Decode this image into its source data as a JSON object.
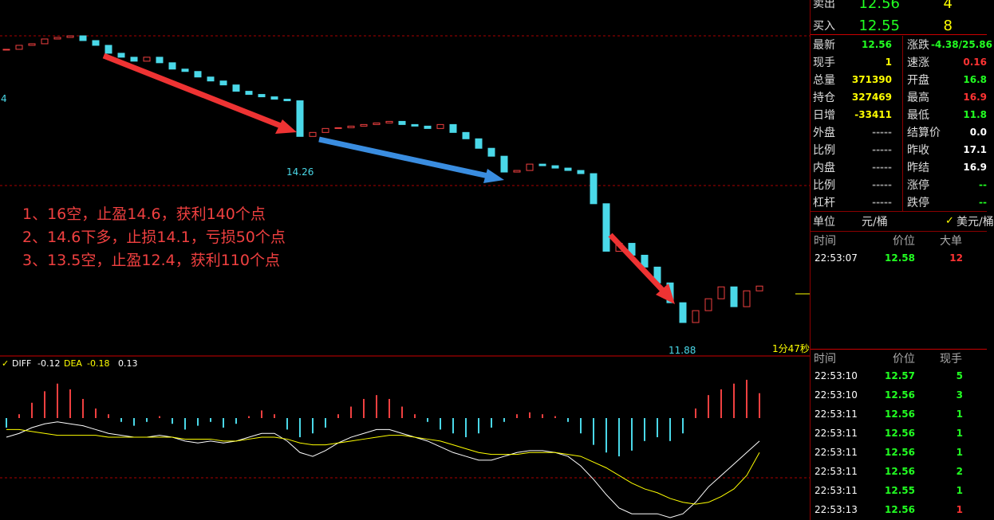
{
  "chart": {
    "type": "candlestick",
    "closes": [
      15.55,
      15.6,
      15.62,
      15.68,
      15.7,
      15.72,
      15.66,
      15.6,
      15.5,
      15.45,
      15.4,
      15.45,
      15.38,
      15.3,
      15.27,
      15.2,
      15.15,
      15.1,
      15.02,
      14.98,
      14.95,
      14.92,
      14.9,
      14.45,
      14.5,
      14.55,
      14.56,
      14.58,
      14.6,
      14.62,
      14.64,
      14.6,
      14.58,
      14.55,
      14.6,
      14.5,
      14.42,
      14.3,
      14.2,
      14.0,
      14.02,
      14.1,
      14.08,
      14.05,
      14.02,
      13.98,
      13.6,
      13.0,
      13.1,
      12.95,
      12.8,
      12.6,
      12.35,
      12.1,
      12.25,
      12.4,
      12.55,
      12.3,
      12.5,
      12.56
    ],
    "left_label": "4",
    "mid_low_label": "14.26",
    "low_label": "11.88",
    "timer": "1分47秒",
    "annotations": [
      "1、16空，止盈14.6，获利140个点",
      "2、14.6下多，止损14.1，亏损50个点",
      "3、13.5空，止盈12.4，获利110个点"
    ],
    "macd": {
      "diff_label": "DIFF",
      "diff": "-0.12",
      "dea_label": "DEA",
      "dea": "-0.18",
      "macd": "0.13",
      "histogram": [
        -0.05,
        0.02,
        0.08,
        0.14,
        0.18,
        0.15,
        0.1,
        0.05,
        0.02,
        -0.02,
        -0.04,
        -0.02,
        0.01,
        -0.03,
        -0.06,
        -0.04,
        -0.02,
        -0.05,
        -0.03,
        0.01,
        0.04,
        0.02,
        -0.06,
        -0.1,
        -0.08,
        -0.05,
        0.02,
        0.06,
        0.1,
        0.12,
        0.1,
        0.06,
        0.02,
        -0.02,
        -0.06,
        -0.08,
        -0.1,
        -0.08,
        -0.05,
        -0.02,
        0.02,
        0.03,
        0.02,
        0.01,
        -0.02,
        -0.08,
        -0.14,
        -0.18,
        -0.2,
        -0.17,
        -0.12,
        -0.1,
        -0.12,
        -0.08,
        0.05,
        0.12,
        0.15,
        0.18,
        0.2,
        0.13
      ],
      "diff_line": [
        -0.1,
        -0.08,
        -0.05,
        -0.03,
        -0.02,
        -0.03,
        -0.04,
        -0.06,
        -0.08,
        -0.09,
        -0.1,
        -0.1,
        -0.09,
        -0.1,
        -0.12,
        -0.13,
        -0.12,
        -0.13,
        -0.12,
        -0.1,
        -0.08,
        -0.08,
        -0.12,
        -0.18,
        -0.2,
        -0.17,
        -0.13,
        -0.1,
        -0.08,
        -0.06,
        -0.06,
        -0.08,
        -0.1,
        -0.12,
        -0.15,
        -0.18,
        -0.2,
        -0.22,
        -0.22,
        -0.2,
        -0.18,
        -0.17,
        -0.17,
        -0.18,
        -0.2,
        -0.25,
        -0.32,
        -0.4,
        -0.47,
        -0.5,
        -0.5,
        -0.5,
        -0.52,
        -0.5,
        -0.44,
        -0.36,
        -0.3,
        -0.24,
        -0.18,
        -0.12
      ],
      "dea_line": [
        -0.06,
        -0.06,
        -0.07,
        -0.08,
        -0.09,
        -0.09,
        -0.09,
        -0.09,
        -0.1,
        -0.1,
        -0.1,
        -0.1,
        -0.1,
        -0.1,
        -0.11,
        -0.11,
        -0.11,
        -0.12,
        -0.12,
        -0.11,
        -0.1,
        -0.1,
        -0.11,
        -0.13,
        -0.14,
        -0.14,
        -0.13,
        -0.12,
        -0.11,
        -0.1,
        -0.09,
        -0.09,
        -0.1,
        -0.11,
        -0.12,
        -0.14,
        -0.16,
        -0.18,
        -0.19,
        -0.19,
        -0.19,
        -0.18,
        -0.18,
        -0.18,
        -0.19,
        -0.2,
        -0.23,
        -0.26,
        -0.3,
        -0.34,
        -0.37,
        -0.39,
        -0.42,
        -0.44,
        -0.45,
        -0.44,
        -0.41,
        -0.37,
        -0.3,
        -0.18
      ]
    }
  },
  "quote": {
    "rows": [
      [
        "卖出",
        "12.56",
        "4"
      ],
      [
        "买入",
        "12.55",
        "8"
      ]
    ]
  },
  "stats": {
    "rows": [
      [
        "最新",
        "12.56",
        "涨跌",
        "-4.38/25.86"
      ],
      [
        "现手",
        "1",
        "速涨",
        "0.16"
      ],
      [
        "总量",
        "371390",
        "开盘",
        "16.8"
      ],
      [
        "持仓",
        "327469",
        "最高",
        "16.9"
      ],
      [
        "日增",
        "-33411",
        "最低",
        "11.8"
      ],
      [
        "外盘",
        "-----",
        "结算价",
        "0.0"
      ],
      [
        "比例",
        "-----",
        "昨收",
        "17.1"
      ],
      [
        "内盘",
        "-----",
        "昨结",
        "16.9"
      ],
      [
        "比例",
        "-----",
        "涨停",
        "--"
      ],
      [
        "杠杆",
        "-----",
        "跌停",
        "--"
      ]
    ]
  },
  "unit": {
    "label": "单位",
    "value": "元/桶",
    "option": "美元/桶"
  },
  "big_orders": {
    "headers": [
      "时间",
      "价位",
      "大单"
    ],
    "rows": [
      [
        "22:53:07",
        "12.58",
        "12"
      ]
    ]
  },
  "ticks": {
    "headers": [
      "时间",
      "价位",
      "现手"
    ],
    "rows": [
      [
        "22:53:10",
        "12.57",
        "5"
      ],
      [
        "22:53:10",
        "12.56",
        "3"
      ],
      [
        "22:53:11",
        "12.56",
        "1"
      ],
      [
        "22:53:11",
        "12.56",
        "1"
      ],
      [
        "22:53:11",
        "12.56",
        "1"
      ],
      [
        "22:53:11",
        "12.56",
        "2"
      ],
      [
        "22:53:11",
        "12.55",
        "1"
      ],
      [
        "22:53:13",
        "12.56",
        "1"
      ]
    ]
  }
}
